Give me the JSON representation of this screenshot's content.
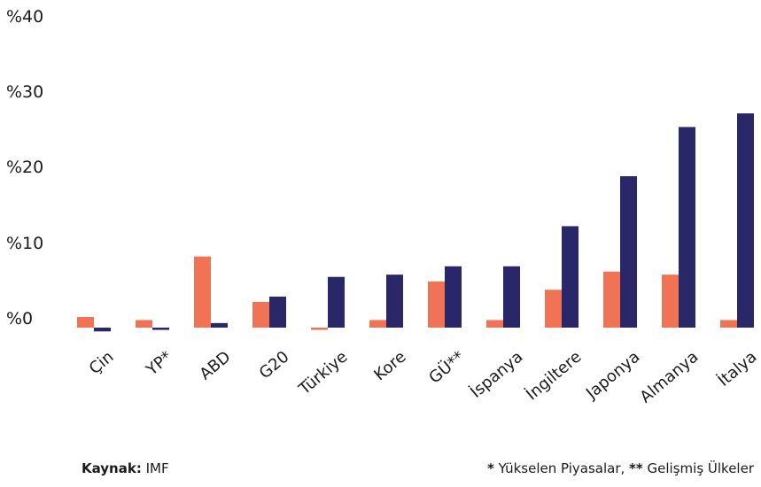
{
  "chart_data": {
    "type": "bar",
    "categories": [
      "Çin",
      "YP*",
      "ABD",
      "G20",
      "Türkiye",
      "Kore",
      "GÜ**",
      "İspanya",
      "İngiltere",
      "Japonya",
      "Almanya",
      "İtalya"
    ],
    "series": [
      {
        "color": "#f07355",
        "values": [
          1.4,
          1.0,
          9.4,
          3.4,
          -0.3,
          1.0,
          6.1,
          1.0,
          5.0,
          7.4,
          7.0,
          1.0
        ]
      },
      {
        "color": "#2a2769",
        "values": [
          -0.5,
          -0.3,
          0.6,
          4.1,
          6.7,
          7.0,
          8.1,
          8.1,
          13.4,
          20.0,
          26.5,
          28.3
        ]
      }
    ],
    "yticks": [
      "%40",
      "%30",
      "%20",
      "%10",
      "%0"
    ],
    "ylim": [
      -2,
      40
    ],
    "grid": false
  },
  "footer": {
    "source_label": "Kaynak:",
    "source_value": "IMF",
    "note_star": "*",
    "note_star_text": "Yükselen Piyasalar,",
    "note_double_star": "**",
    "note_double_star_text": "Gelişmiş Ülkeler"
  }
}
